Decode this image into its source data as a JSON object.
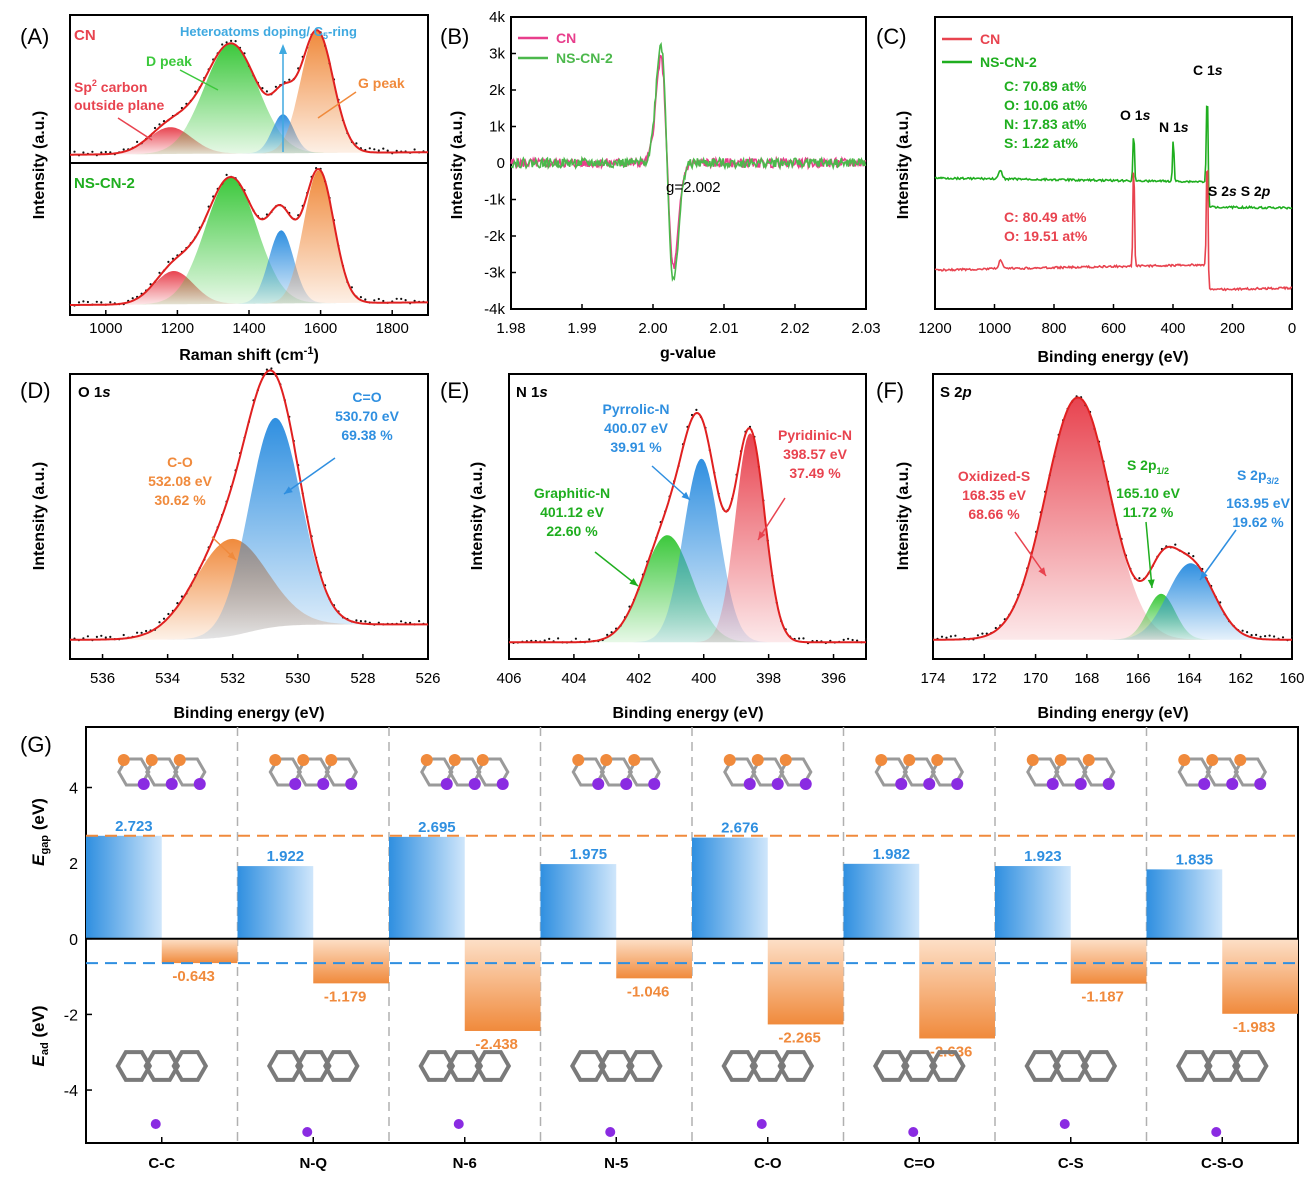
{
  "colors": {
    "cn": "#e8434f",
    "ns": "#1fae1f",
    "pinkline": "#e83e8c",
    "blue": "#2f8fe0",
    "orange": "#f08a3c",
    "green": "#3cc83c",
    "fitred": "#e02020",
    "purple": "#8a2be2",
    "gray": "#8a8a8a"
  },
  "chart_data": [
    {
      "panel": "A",
      "type": "area",
      "label": "(A)",
      "xlabel": "Raman shift (cm-1)",
      "ylabel": "Intensity (a.u.)",
      "xlim": [
        900,
        1900
      ],
      "xticks": [
        1000,
        1200,
        1400,
        1600,
        1800
      ],
      "subplots": [
        {
          "name": "CN",
          "peaks": [
            {
              "name": "Sp2 carbon outside plane",
              "center": 1180,
              "width": 60,
              "height": 0.22,
              "color": "#e8434f"
            },
            {
              "name": "D peak",
              "center": 1350,
              "width": 75,
              "height": 0.9,
              "color": "#3cc83c"
            },
            {
              "name": "Heteroatoms doping/ C5-ring",
              "center": 1495,
              "width": 30,
              "height": 0.32,
              "color": "#2f8fe0"
            },
            {
              "name": "G peak",
              "center": 1590,
              "width": 45,
              "height": 1.0,
              "color": "#f08a3c"
            }
          ]
        },
        {
          "name": "NS-CN-2",
          "peaks": [
            {
              "name": "Sp2 carbon outside plane",
              "center": 1190,
              "width": 55,
              "height": 0.25,
              "color": "#e8434f"
            },
            {
              "name": "D peak",
              "center": 1350,
              "width": 72,
              "height": 0.95,
              "color": "#3cc83c"
            },
            {
              "name": "Heteroatoms doping/ C5-ring",
              "center": 1490,
              "width": 35,
              "height": 0.55,
              "color": "#2f8fe0"
            },
            {
              "name": "G peak",
              "center": 1595,
              "width": 42,
              "height": 1.0,
              "color": "#f08a3c"
            }
          ]
        }
      ],
      "labels": {
        "cn": "CN",
        "ns": "NS-CN-2",
        "hetero": "Heteroatoms doping/ C",
        "hetero_sub": "5",
        "hetero_end": "-ring",
        "dpeak": "D peak",
        "gpeak": "G peak",
        "sp2_a": "Sp",
        "sp2_sup": "2",
        "sp2_b": " carbon",
        "sp2_c": "outside plane"
      }
    },
    {
      "panel": "B",
      "type": "line",
      "label": "(B)",
      "xlabel": "g-value",
      "ylabel": "Intensity (a.u.)",
      "xlim": [
        1.98,
        2.03
      ],
      "ylim": [
        -4000,
        4000
      ],
      "xticks": [
        "1.98",
        "1.99",
        "2.00",
        "2.01",
        "2.02",
        "2.03"
      ],
      "yticks": [
        "4k",
        "3k",
        "2k",
        "1k",
        "0",
        "-1k",
        "-2k",
        "-3k",
        "-4k"
      ],
      "annotation": "g=2.002",
      "series": [
        {
          "name": "CN",
          "color": "#e83e8c",
          "g_center": 2.002,
          "min": -3000,
          "max": 2700
        },
        {
          "name": "NS-CN-2",
          "color": "#4cb84c",
          "g_center": 2.002,
          "min": -3200,
          "max": 3300
        }
      ]
    },
    {
      "panel": "C",
      "type": "line",
      "label": "(C)",
      "xlabel": "Binding energy (eV)",
      "ylabel": "Intensity (a.u.)",
      "xlim": [
        1200,
        0
      ],
      "xticks": [
        1200,
        1000,
        800,
        600,
        400,
        200,
        0
      ],
      "series": [
        {
          "name": "CN",
          "color": "#e8434f"
        },
        {
          "name": "NS-CN-2",
          "color": "#1fae1f"
        }
      ],
      "peak_labels": {
        "c1s": "C 1s",
        "o1s": "O 1s",
        "n1s": "N 1s",
        "s": "S 2s S 2p"
      },
      "ns_composition": [
        "C: 70.89 at%",
        "O: 10.06 at%",
        "N: 17.83 at%",
        "S:  1.22 at%"
      ],
      "cn_composition": [
        "C: 80.49 at%",
        "O: 19.51 at%"
      ]
    },
    {
      "panel": "D",
      "type": "area",
      "label": "(D)",
      "title": "O 1s",
      "xlabel": "Binding energy (eV)",
      "ylabel": "Intensity (a.u.)",
      "xlim": [
        537,
        526
      ],
      "xticks": [
        536,
        534,
        532,
        530,
        528,
        526
      ],
      "peaks": [
        {
          "name": "C-O",
          "center": 532.08,
          "percent": 30.62,
          "color": "#f08a3c",
          "height": 0.38,
          "width": 1.1
        },
        {
          "name": "C=O",
          "center": 530.7,
          "percent": 69.38,
          "color": "#2f8fe0",
          "height": 0.82,
          "width": 0.8
        }
      ],
      "labels": {
        "co": "C-O",
        "co_e": "532.08 eV",
        "co_p": "30.62 %",
        "cdo": "C=O",
        "cdo_e": "530.70 eV",
        "cdo_p": "69.38 %"
      }
    },
    {
      "panel": "E",
      "type": "area",
      "label": "(E)",
      "title": "N 1s",
      "xlabel": "Binding energy (eV)",
      "ylabel": "Intensity (a.u.)",
      "xlim": [
        406,
        395
      ],
      "xticks": [
        406,
        404,
        402,
        400,
        398,
        396
      ],
      "peaks": [
        {
          "name": "Graphitic-N",
          "center": 401.12,
          "percent": 22.6,
          "color": "#3cc83c",
          "height": 0.42,
          "width": 0.75
        },
        {
          "name": "Pyrrolic-N",
          "center": 400.07,
          "percent": 39.91,
          "color": "#2f8fe0",
          "height": 0.72,
          "width": 0.55
        },
        {
          "name": "Pyridinic-N",
          "center": 398.57,
          "percent": 37.49,
          "color": "#e8434f",
          "height": 0.82,
          "width": 0.45
        }
      ],
      "labels": {
        "gr": "Graphitic-N",
        "gr_e": "401.12 eV",
        "gr_p": "22.60 %",
        "py": "Pyrrolic-N",
        "py_e": "400.07 eV",
        "py_p": "39.91 %",
        "pd": "Pyridinic-N",
        "pd_e": "398.57 eV",
        "pd_p": "37.49 %"
      }
    },
    {
      "panel": "F",
      "type": "area",
      "label": "(F)",
      "title": "S 2p",
      "xlabel": "Binding energy (eV)",
      "ylabel": "Intensity (a.u.)",
      "xlim": [
        174,
        160
      ],
      "xticks": [
        174,
        172,
        170,
        168,
        166,
        164,
        162,
        160
      ],
      "peaks": [
        {
          "name": "Oxidized-S",
          "center": 168.35,
          "percent": 68.66,
          "color": "#e8434f",
          "height": 0.95,
          "width": 1.25
        },
        {
          "name": "S 2p1/2",
          "center": 165.1,
          "percent": 11.72,
          "color": "#3cc83c",
          "height": 0.18,
          "width": 0.55
        },
        {
          "name": "S 2p3/2",
          "center": 163.95,
          "percent": 19.62,
          "color": "#2f8fe0",
          "height": 0.3,
          "width": 0.9
        }
      ],
      "labels": {
        "ox": "Oxidized-S",
        "ox_e": "168.35 eV",
        "ox_p": "68.66 %",
        "s12": "S 2p",
        "s12_sub": "1/2",
        "s12_e": "165.10 eV",
        "s12_p": "11.72 %",
        "s32": "S 2p",
        "s32_sub": "3/2",
        "s32_e": "163.95 eV",
        "s32_p": "19.62 %"
      }
    },
    {
      "panel": "G",
      "type": "bar",
      "label": "(G)",
      "categories": [
        "C-C",
        "N-Q",
        "N-6",
        "N-5",
        "C-O",
        "C=O",
        "C-S",
        "C-S-O"
      ],
      "series": [
        {
          "name": "Egap",
          "color": "#2f8fe0",
          "values": [
            2.723,
            1.922,
            2.695,
            1.975,
            2.676,
            1.982,
            1.923,
            1.835
          ]
        },
        {
          "name": "Ead",
          "color": "#f08a3c",
          "values": [
            -0.643,
            -1.179,
            -2.438,
            -1.046,
            -2.265,
            -2.636,
            -1.187,
            -1.983
          ]
        }
      ],
      "value_labels_gap": [
        "2.723",
        "1.922",
        "2.695",
        "1.975",
        "2.676",
        "1.982",
        "1.923",
        "1.835"
      ],
      "value_labels_ad": [
        "-0.643",
        "-1.179",
        "-2.438",
        "-1.046",
        "-2.265",
        "-2.636",
        "-1.187",
        "-1.983"
      ],
      "ylabel_top": "E",
      "ylabel_top_sub": "gap",
      "ylabel_bottom": "E",
      "ylabel_bottom_sub": "ad",
      "unit": " (eV)",
      "yticks": [
        "4",
        "2",
        "0",
        "-2",
        "-4"
      ],
      "ylim": [
        -5.4,
        5.6
      ],
      "ref_lines": {
        "gap": 2.723,
        "ad": -0.643
      }
    }
  ]
}
